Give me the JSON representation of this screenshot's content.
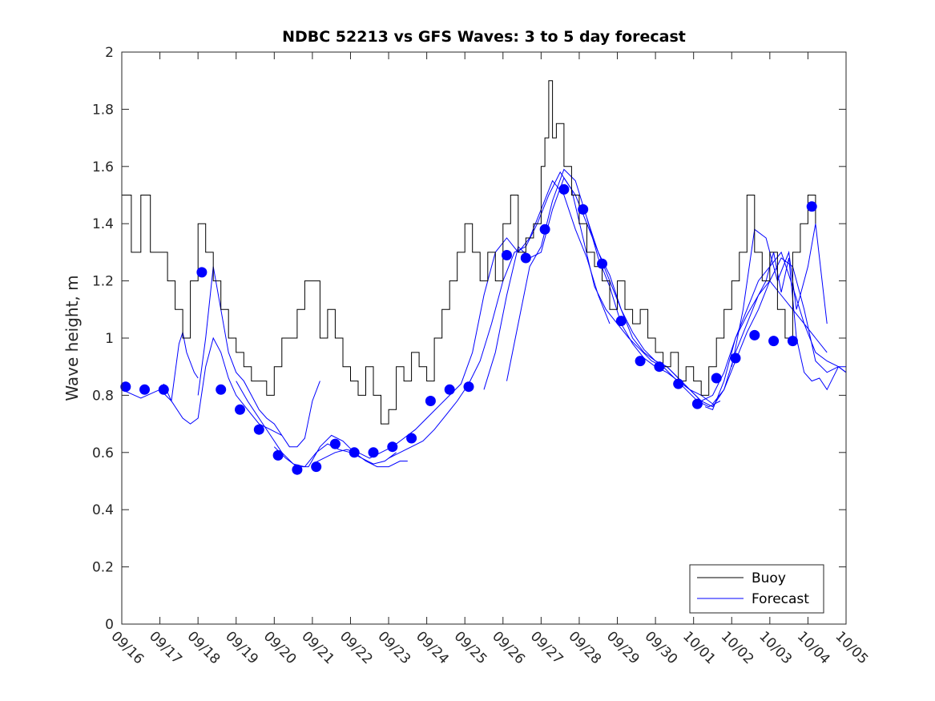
{
  "chart_data": {
    "type": "line",
    "title": "NDBC 52213 vs GFS Waves: 3 to 5 day forecast",
    "xlabel": "",
    "ylabel": "Wave height, m",
    "xlim": [
      0,
      19
    ],
    "ylim": [
      0,
      2
    ],
    "grid": false,
    "legend_position": "bottom-right",
    "x_tick_labels": [
      "09/16",
      "09/17",
      "09/18",
      "09/19",
      "09/20",
      "09/21",
      "09/22",
      "09/23",
      "09/24",
      "09/25",
      "09/26",
      "09/27",
      "09/28",
      "09/29",
      "09/30",
      "10/01",
      "10/02",
      "10/03",
      "10/04",
      "10/05"
    ],
    "y_ticks": [
      0,
      0.2,
      0.4,
      0.6,
      0.8,
      1,
      1.2,
      1.4,
      1.6,
      1.8,
      2
    ],
    "y_tick_labels": [
      "0",
      "0.2",
      "0.4",
      "0.6",
      "0.8",
      "1",
      "1.2",
      "1.4",
      "1.6",
      "1.8",
      "2"
    ],
    "colors": {
      "buoy": "#000000",
      "forecast": "#0000ff",
      "axis": "#262626"
    },
    "series": [
      {
        "name": "Buoy",
        "color": "#000000",
        "x": [
          0.0,
          0.25,
          0.5,
          0.75,
          1.0,
          1.2,
          1.4,
          1.6,
          1.8,
          2.0,
          2.2,
          2.4,
          2.6,
          2.8,
          3.0,
          3.2,
          3.4,
          3.6,
          3.8,
          4.0,
          4.2,
          4.4,
          4.6,
          4.8,
          5.0,
          5.2,
          5.4,
          5.6,
          5.8,
          6.0,
          6.2,
          6.4,
          6.6,
          6.8,
          7.0,
          7.2,
          7.4,
          7.6,
          7.8,
          8.0,
          8.2,
          8.4,
          8.6,
          8.8,
          9.0,
          9.2,
          9.4,
          9.6,
          9.8,
          10.0,
          10.2,
          10.4,
          10.6,
          10.8,
          11.0,
          11.1,
          11.2,
          11.3,
          11.4,
          11.6,
          11.8,
          12.0,
          12.2,
          12.4,
          12.6,
          12.8,
          13.0,
          13.2,
          13.4,
          13.6,
          13.8,
          14.0,
          14.2,
          14.4,
          14.6,
          14.8,
          15.0,
          15.2,
          15.4,
          15.6,
          15.8,
          16.0,
          16.2,
          16.4,
          16.6,
          16.8,
          17.0,
          17.2,
          17.4,
          17.6,
          17.8,
          18.0,
          18.1,
          18.2
        ],
        "values": [
          1.5,
          1.3,
          1.5,
          1.3,
          1.3,
          1.2,
          1.1,
          1.0,
          1.2,
          1.4,
          1.3,
          1.2,
          1.1,
          1.0,
          0.95,
          0.9,
          0.85,
          0.85,
          0.8,
          0.9,
          1.0,
          1.0,
          1.1,
          1.2,
          1.2,
          1.0,
          1.1,
          1.0,
          0.9,
          0.85,
          0.8,
          0.9,
          0.8,
          0.7,
          0.75,
          0.9,
          0.85,
          0.95,
          0.9,
          0.85,
          1.0,
          1.1,
          1.2,
          1.3,
          1.4,
          1.3,
          1.2,
          1.3,
          1.2,
          1.4,
          1.5,
          1.3,
          1.35,
          1.4,
          1.6,
          1.7,
          1.9,
          1.7,
          1.75,
          1.6,
          1.5,
          1.4,
          1.3,
          1.25,
          1.2,
          1.1,
          1.2,
          1.1,
          1.05,
          1.1,
          1.0,
          0.95,
          0.9,
          0.95,
          0.85,
          0.9,
          0.85,
          0.8,
          0.9,
          1.0,
          1.1,
          1.2,
          1.3,
          1.5,
          1.3,
          1.2,
          1.3,
          1.1,
          1.0,
          1.3,
          1.4,
          1.5,
          1.5,
          1.4
        ]
      },
      {
        "name": "Forecast",
        "color": "#0000ff",
        "lines": [
          {
            "x": [
              0.0,
              0.5,
              1.0,
              1.3,
              1.6,
              1.8,
              2.0,
              2.2,
              2.4,
              2.6,
              2.8,
              3.0,
              3.3,
              3.6,
              3.9,
              4.2
            ],
            "values": [
              0.82,
              0.79,
              0.82,
              0.78,
              0.72,
              0.7,
              0.72,
              0.9,
              1.0,
              0.95,
              0.86,
              0.8,
              0.75,
              0.7,
              0.68,
              0.66
            ]
          },
          {
            "x": [
              1.1,
              1.3,
              1.5,
              1.6,
              1.7,
              1.9,
              2.0
            ],
            "values": [
              0.84,
              0.78,
              0.98,
              1.02,
              0.95,
              0.88,
              0.86
            ]
          },
          {
            "x": [
              2.0,
              2.2,
              2.4,
              2.6,
              2.8,
              3.0,
              3.2,
              3.4,
              3.6,
              3.8,
              4.0,
              4.2,
              4.4,
              4.6,
              4.8,
              5.0,
              5.2
            ],
            "values": [
              0.8,
              1.0,
              1.25,
              1.1,
              0.95,
              0.88,
              0.85,
              0.8,
              0.75,
              0.72,
              0.7,
              0.66,
              0.62,
              0.62,
              0.65,
              0.78,
              0.85
            ]
          },
          {
            "x": [
              3.0,
              3.3,
              3.6,
              3.9,
              4.2,
              4.5,
              4.8,
              5.1,
              5.4,
              5.7,
              6.0,
              6.3,
              6.6,
              6.9,
              7.2
            ],
            "values": [
              0.85,
              0.78,
              0.72,
              0.66,
              0.6,
              0.56,
              0.55,
              0.6,
              0.63,
              0.61,
              0.6,
              0.58,
              0.56,
              0.57,
              0.6
            ]
          },
          {
            "x": [
              4.0,
              4.3,
              4.6,
              4.9,
              5.2,
              5.5,
              5.8,
              6.1,
              6.4,
              6.7,
              7.0,
              7.3,
              7.5
            ],
            "values": [
              0.62,
              0.58,
              0.55,
              0.55,
              0.62,
              0.66,
              0.64,
              0.6,
              0.57,
              0.55,
              0.55,
              0.57,
              0.57
            ]
          },
          {
            "x": [
              5.0,
              5.3,
              5.6,
              5.9,
              6.2,
              6.5,
              6.8,
              7.1,
              7.4,
              7.7,
              8.0,
              8.3,
              8.6,
              8.9,
              9.2,
              9.5,
              9.8,
              10.1,
              10.4,
              10.7,
              11.0,
              11.3,
              11.6,
              11.9,
              12.2,
              12.5,
              12.8
            ],
            "values": [
              0.56,
              0.58,
              0.6,
              0.61,
              0.6,
              0.58,
              0.6,
              0.62,
              0.65,
              0.68,
              0.72,
              0.76,
              0.8,
              0.84,
              0.95,
              1.15,
              1.3,
              1.35,
              1.3,
              1.35,
              1.45,
              1.55,
              1.5,
              1.38,
              1.28,
              1.15,
              1.05
            ]
          },
          {
            "x": [
              7.0,
              7.3,
              7.6,
              7.9,
              8.2,
              8.5,
              8.8,
              9.1,
              9.4,
              9.7,
              10.0,
              10.3,
              10.6,
              10.9,
              11.2,
              11.5,
              11.8,
              12.1,
              12.4,
              12.7,
              13.0,
              13.3,
              13.6,
              13.9,
              14.2,
              14.5,
              14.8,
              15.1,
              15.4,
              15.7
            ],
            "values": [
              0.58,
              0.6,
              0.62,
              0.64,
              0.68,
              0.73,
              0.78,
              0.84,
              0.92,
              1.05,
              1.2,
              1.3,
              1.32,
              1.4,
              1.5,
              1.58,
              1.52,
              1.35,
              1.18,
              1.1,
              1.05,
              1.0,
              0.96,
              0.92,
              0.9,
              0.86,
              0.82,
              0.78,
              0.76,
              0.78
            ]
          },
          {
            "x": [
              9.5,
              9.8,
              10.1,
              10.4,
              10.7,
              11.0,
              11.3,
              11.6,
              11.9,
              12.2,
              12.5,
              12.8,
              13.1,
              13.4,
              13.7,
              14.0,
              14.3,
              14.6,
              14.9,
              15.2,
              15.5,
              15.8,
              16.1,
              16.4,
              16.7,
              17.0,
              17.3,
              17.6,
              17.9,
              18.2,
              18.5
            ],
            "values": [
              0.82,
              0.95,
              1.15,
              1.32,
              1.28,
              1.3,
              1.45,
              1.56,
              1.5,
              1.4,
              1.3,
              1.22,
              1.1,
              1.0,
              0.95,
              0.92,
              0.9,
              0.86,
              0.82,
              0.78,
              0.76,
              0.82,
              0.95,
              1.05,
              1.15,
              1.2,
              1.15,
              1.1,
              1.05,
              1.0,
              0.95
            ]
          },
          {
            "x": [
              10.1,
              10.4,
              10.7,
              11.0,
              11.3,
              11.6,
              11.9,
              12.2,
              12.5,
              12.8,
              13.1,
              13.4,
              13.7,
              14.0,
              14.3,
              14.6,
              14.9,
              15.2,
              15.5,
              15.8,
              16.1,
              16.4,
              16.7,
              17.0,
              17.3,
              17.6,
              17.9,
              18.2,
              18.5,
              18.8,
              19.0
            ],
            "values": [
              0.85,
              1.05,
              1.25,
              1.32,
              1.48,
              1.59,
              1.55,
              1.42,
              1.28,
              1.18,
              1.05,
              0.98,
              0.93,
              0.9,
              0.88,
              0.85,
              0.82,
              0.78,
              0.8,
              0.88,
              1.0,
              1.1,
              1.2,
              1.25,
              1.3,
              1.18,
              1.05,
              0.95,
              0.92,
              0.9,
              0.88
            ]
          },
          {
            "x": [
              12.2,
              12.5,
              12.8,
              13.1,
              13.4,
              13.7,
              14.0,
              14.3,
              14.6,
              14.9,
              15.2,
              15.5,
              15.8,
              16.1,
              16.4,
              16.7,
              17.0,
              17.3,
              17.6,
              17.9,
              18.2,
              18.5,
              18.8,
              19.0
            ],
            "values": [
              1.42,
              1.3,
              1.2,
              1.1,
              1.02,
              0.96,
              0.92,
              0.9,
              0.86,
              0.82,
              0.8,
              0.77,
              0.82,
              0.92,
              1.02,
              1.1,
              1.2,
              1.28,
              1.25,
              1.1,
              0.92,
              0.88,
              0.9,
              0.88
            ]
          },
          {
            "x": [
              15.3,
              15.5,
              15.8,
              16.1,
              16.4,
              16.7,
              16.9,
              17.1,
              17.3,
              17.5,
              17.7,
              17.9,
              18.1,
              18.3,
              18.5,
              18.8,
              19.0
            ],
            "values": [
              0.76,
              0.75,
              0.85,
              1.0,
              1.08,
              1.15,
              1.2,
              1.3,
              1.16,
              1.28,
              1.0,
              0.88,
              0.85,
              0.86,
              0.82,
              0.9,
              0.9
            ]
          },
          {
            "x": [
              16.0,
              16.3,
              16.6,
              16.9,
              17.2,
              17.5,
              17.7,
              18.0,
              18.2,
              18.5
            ],
            "values": [
              0.9,
              1.1,
              1.38,
              1.35,
              1.2,
              1.3,
              1.1,
              1.25,
              1.4,
              1.05
            ]
          }
        ],
        "markers": {
          "x": [
            0.1,
            0.6,
            1.1,
            2.1,
            2.6,
            3.1,
            3.6,
            4.1,
            4.6,
            5.1,
            5.6,
            6.1,
            6.6,
            7.1,
            7.6,
            8.1,
            8.6,
            9.1,
            10.1,
            10.6,
            11.1,
            11.6,
            12.1,
            12.6,
            13.1,
            13.6,
            14.1,
            14.6,
            15.1,
            15.6,
            16.1,
            16.6,
            17.1,
            17.6,
            18.1
          ],
          "values": [
            0.83,
            0.82,
            0.82,
            1.23,
            0.82,
            0.75,
            0.68,
            0.59,
            0.54,
            0.55,
            0.63,
            0.6,
            0.6,
            0.62,
            0.65,
            0.78,
            0.82,
            0.83,
            1.29,
            1.28,
            1.38,
            1.52,
            1.45,
            1.26,
            1.06,
            0.92,
            0.9,
            0.84,
            0.77,
            0.86,
            0.93,
            1.01,
            0.99,
            0.99,
            1.46
          ]
        }
      }
    ],
    "legend": [
      {
        "label": "Buoy",
        "color": "#000000"
      },
      {
        "label": "Forecast",
        "color": "#0000ff"
      }
    ]
  }
}
